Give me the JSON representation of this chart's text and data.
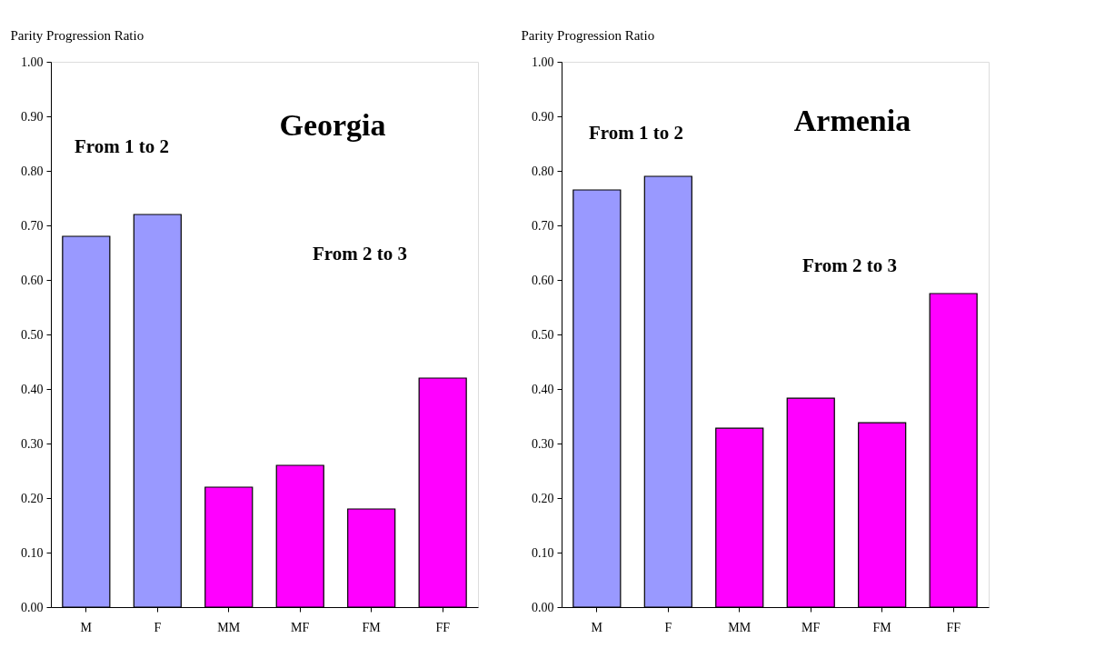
{
  "chart_data": [
    {
      "type": "bar",
      "ylabel": "Parity Progression Ratio",
      "annotations": [
        "From 1 to 2",
        "Georgia",
        "From 2 to 3"
      ],
      "categories": [
        "M",
        "F",
        "MM",
        "MF",
        "FM",
        "FF"
      ],
      "values": [
        0.68,
        0.72,
        0.22,
        0.26,
        0.18,
        0.42
      ],
      "colors": [
        "#9999ff",
        "#9999ff",
        "#ff00ff",
        "#ff00ff",
        "#ff00ff",
        "#ff00ff"
      ],
      "ylim": [
        0,
        1
      ],
      "yticks": [
        {
          "value": 0,
          "label": "0.00"
        },
        {
          "value": 0.1,
          "label": "0.10"
        },
        {
          "value": 0.2,
          "label": "0.20"
        },
        {
          "value": 0.3,
          "label": "0.30"
        },
        {
          "value": 0.4,
          "label": "0.40"
        },
        {
          "value": 0.5,
          "label": "0.50"
        },
        {
          "value": 0.6,
          "label": "0.60"
        },
        {
          "value": 0.7,
          "label": "0.70"
        },
        {
          "value": 0.8,
          "label": "0.80"
        },
        {
          "value": 0.9,
          "label": "0.90"
        },
        {
          "value": 1,
          "label": "1.00"
        }
      ],
      "grid": false
    },
    {
      "type": "bar",
      "ylabel": "Parity Progression Ratio",
      "annotations": [
        "From 1 to 2",
        "Armenia",
        "From 2 to 3"
      ],
      "categories": [
        "M",
        "F",
        "MM",
        "MF",
        "FM",
        "FF"
      ],
      "values": [
        0.765,
        0.79,
        0.328,
        0.383,
        0.338,
        0.575
      ],
      "colors": [
        "#9999ff",
        "#9999ff",
        "#ff00ff",
        "#ff00ff",
        "#ff00ff",
        "#ff00ff"
      ],
      "ylim": [
        0,
        1
      ],
      "yticks": [
        {
          "value": 0,
          "label": "0.00"
        },
        {
          "value": 0.1,
          "label": "0.10"
        },
        {
          "value": 0.2,
          "label": "0.20"
        },
        {
          "value": 0.3,
          "label": "0.30"
        },
        {
          "value": 0.4,
          "label": "0.40"
        },
        {
          "value": 0.5,
          "label": "0.50"
        },
        {
          "value": 0.6,
          "label": "0.60"
        },
        {
          "value": 0.7,
          "label": "0.70"
        },
        {
          "value": 0.8,
          "label": "0.80"
        },
        {
          "value": 0.9,
          "label": "0.90"
        },
        {
          "value": 1,
          "label": "1.00"
        }
      ],
      "grid": false
    }
  ]
}
